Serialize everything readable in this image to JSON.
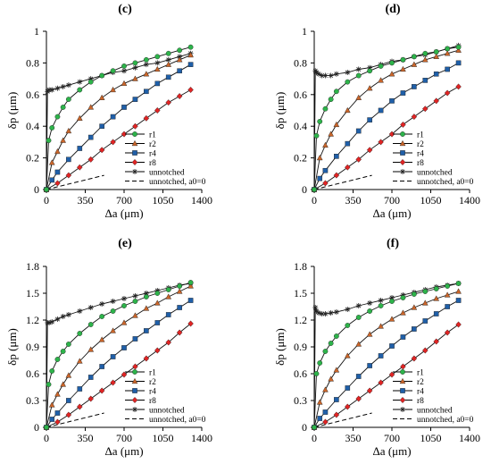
{
  "colors": {
    "r1": "#2db34a",
    "r2": "#c9652a",
    "r4": "#1f5fa8",
    "r8": "#e02424",
    "unnotched": "#222222",
    "unnotched_a0": "#000000"
  },
  "legend_order": [
    "r1",
    "r2",
    "r4",
    "r8",
    "unnotched",
    "unnotched, a0=0"
  ],
  "chart_data": [
    {
      "panel": "(c)",
      "type": "line",
      "xlabel": "Δa (μm)",
      "ylabel": "δp (μm)",
      "xlim": [
        0,
        1400
      ],
      "ylim": [
        0,
        1
      ],
      "x_ticks": [
        "0",
        "350",
        "700",
        "1050",
        "1400"
      ],
      "y_ticks": [
        "0",
        "0.2",
        "0.4",
        "0.6",
        "0.8",
        "1"
      ],
      "grid": false,
      "legend_position": "bottom-right",
      "series": [
        {
          "name": "r1",
          "marker": "circle",
          "x": [
            0,
            20,
            50,
            100,
            150,
            200,
            300,
            400,
            500,
            600,
            700,
            800,
            900,
            1000,
            1100,
            1200,
            1300
          ],
          "y": [
            0,
            0.31,
            0.39,
            0.46,
            0.52,
            0.57,
            0.63,
            0.68,
            0.72,
            0.75,
            0.78,
            0.8,
            0.82,
            0.84,
            0.86,
            0.88,
            0.9
          ]
        },
        {
          "name": "r2",
          "marker": "triangle",
          "x": [
            0,
            50,
            100,
            150,
            200,
            300,
            400,
            500,
            600,
            700,
            800,
            900,
            1000,
            1100,
            1200,
            1300
          ],
          "y": [
            0,
            0.17,
            0.24,
            0.31,
            0.37,
            0.45,
            0.52,
            0.58,
            0.63,
            0.67,
            0.7,
            0.73,
            0.76,
            0.79,
            0.82,
            0.85
          ]
        },
        {
          "name": "r4",
          "marker": "square",
          "x": [
            0,
            50,
            100,
            200,
            300,
            400,
            500,
            600,
            700,
            800,
            900,
            1000,
            1100,
            1200,
            1300
          ],
          "y": [
            0,
            0.06,
            0.11,
            0.19,
            0.26,
            0.33,
            0.4,
            0.46,
            0.52,
            0.57,
            0.62,
            0.67,
            0.71,
            0.75,
            0.79
          ]
        },
        {
          "name": "r8",
          "marker": "diamond",
          "x": [
            0,
            100,
            200,
            300,
            400,
            500,
            600,
            700,
            800,
            900,
            1000,
            1100,
            1200,
            1300
          ],
          "y": [
            0,
            0.04,
            0.09,
            0.14,
            0.19,
            0.25,
            0.3,
            0.35,
            0.4,
            0.45,
            0.5,
            0.55,
            0.59,
            0.63
          ]
        },
        {
          "name": "unnotched",
          "marker": "star",
          "x": [
            0,
            10,
            25,
            50,
            100,
            150,
            200,
            300,
            400,
            500,
            600,
            700,
            800,
            900,
            1000,
            1100,
            1200,
            1300
          ],
          "y": [
            0,
            0.62,
            0.63,
            0.63,
            0.64,
            0.65,
            0.66,
            0.68,
            0.7,
            0.72,
            0.74,
            0.75,
            0.77,
            0.79,
            0.8,
            0.82,
            0.84,
            0.86
          ]
        },
        {
          "name": "unnotched, a0=0",
          "marker": "none",
          "dashed": true,
          "x": [
            0,
            520
          ],
          "y": [
            0,
            0.09
          ]
        }
      ]
    },
    {
      "panel": "(d)",
      "type": "line",
      "xlabel": "Δa (μm)",
      "ylabel": "δp (μm)",
      "xlim": [
        0,
        1400
      ],
      "ylim": [
        0,
        1
      ],
      "x_ticks": [
        "0",
        "350",
        "700",
        "1050",
        "1400"
      ],
      "y_ticks": [
        "0",
        "0.2",
        "0.4",
        "0.6",
        "0.8",
        "1"
      ],
      "grid": false,
      "legend_position": "bottom-right",
      "series": [
        {
          "name": "r1",
          "marker": "circle",
          "x": [
            0,
            20,
            50,
            100,
            150,
            200,
            300,
            400,
            500,
            600,
            700,
            800,
            900,
            1000,
            1100,
            1200,
            1300
          ],
          "y": [
            0,
            0.34,
            0.43,
            0.51,
            0.57,
            0.62,
            0.68,
            0.72,
            0.75,
            0.78,
            0.8,
            0.82,
            0.84,
            0.86,
            0.87,
            0.89,
            0.9
          ]
        },
        {
          "name": "r2",
          "marker": "triangle",
          "x": [
            0,
            50,
            100,
            150,
            200,
            300,
            400,
            500,
            600,
            700,
            800,
            900,
            1000,
            1100,
            1200,
            1300
          ],
          "y": [
            0,
            0.2,
            0.28,
            0.35,
            0.41,
            0.5,
            0.58,
            0.64,
            0.69,
            0.73,
            0.76,
            0.79,
            0.82,
            0.84,
            0.86,
            0.88
          ]
        },
        {
          "name": "r4",
          "marker": "square",
          "x": [
            0,
            50,
            100,
            200,
            300,
            400,
            500,
            600,
            700,
            800,
            900,
            1000,
            1100,
            1200,
            1300
          ],
          "y": [
            0,
            0.07,
            0.12,
            0.21,
            0.29,
            0.37,
            0.44,
            0.5,
            0.56,
            0.61,
            0.65,
            0.69,
            0.73,
            0.76,
            0.8
          ]
        },
        {
          "name": "r8",
          "marker": "diamond",
          "x": [
            0,
            100,
            200,
            300,
            400,
            500,
            600,
            700,
            800,
            900,
            1000,
            1100,
            1200,
            1300
          ],
          "y": [
            0,
            0.04,
            0.09,
            0.14,
            0.19,
            0.25,
            0.3,
            0.35,
            0.41,
            0.46,
            0.51,
            0.56,
            0.61,
            0.65
          ]
        },
        {
          "name": "unnotched",
          "marker": "star",
          "x": [
            0,
            10,
            20,
            40,
            70,
            100,
            150,
            200,
            300,
            400,
            500,
            600,
            700,
            800,
            900,
            1000,
            1100,
            1200,
            1300
          ],
          "y": [
            0,
            0.75,
            0.74,
            0.73,
            0.72,
            0.72,
            0.72,
            0.73,
            0.74,
            0.76,
            0.77,
            0.79,
            0.81,
            0.82,
            0.84,
            0.85,
            0.87,
            0.89,
            0.91
          ]
        },
        {
          "name": "unnotched, a0=0",
          "marker": "none",
          "dashed": true,
          "x": [
            0,
            520
          ],
          "y": [
            0,
            0.09
          ]
        }
      ]
    },
    {
      "panel": "(e)",
      "type": "line",
      "xlabel": "Δa (μm)",
      "ylabel": "δp (μm)",
      "xlim": [
        0,
        1400
      ],
      "ylim": [
        0,
        1.8
      ],
      "x_ticks": [
        "0",
        "350",
        "700",
        "1050",
        "1400"
      ],
      "y_ticks": [
        "0",
        "0.3",
        "0.6",
        "0.9",
        "1.2",
        "1.5",
        "1.8"
      ],
      "grid": false,
      "legend_position": "bottom-right",
      "series": [
        {
          "name": "r1",
          "marker": "circle",
          "x": [
            0,
            20,
            50,
            100,
            150,
            200,
            300,
            400,
            500,
            600,
            700,
            800,
            900,
            1000,
            1100,
            1200,
            1300
          ],
          "y": [
            0,
            0.48,
            0.63,
            0.76,
            0.85,
            0.93,
            1.05,
            1.15,
            1.24,
            1.3,
            1.36,
            1.41,
            1.46,
            1.5,
            1.54,
            1.58,
            1.62
          ]
        },
        {
          "name": "r2",
          "marker": "triangle",
          "x": [
            0,
            50,
            100,
            150,
            200,
            300,
            400,
            500,
            600,
            700,
            800,
            900,
            1000,
            1100,
            1200,
            1300
          ],
          "y": [
            0,
            0.25,
            0.37,
            0.48,
            0.58,
            0.74,
            0.87,
            0.98,
            1.08,
            1.17,
            1.25,
            1.33,
            1.39,
            1.46,
            1.52,
            1.58
          ]
        },
        {
          "name": "r4",
          "marker": "square",
          "x": [
            0,
            50,
            100,
            200,
            300,
            400,
            500,
            600,
            700,
            800,
            900,
            1000,
            1100,
            1200,
            1300
          ],
          "y": [
            0,
            0.09,
            0.16,
            0.3,
            0.43,
            0.56,
            0.68,
            0.79,
            0.89,
            0.99,
            1.08,
            1.17,
            1.26,
            1.34,
            1.42
          ]
        },
        {
          "name": "r8",
          "marker": "diamond",
          "x": [
            0,
            100,
            200,
            300,
            400,
            500,
            600,
            700,
            800,
            900,
            1000,
            1100,
            1200,
            1300
          ],
          "y": [
            0,
            0.06,
            0.14,
            0.23,
            0.32,
            0.41,
            0.5,
            0.59,
            0.68,
            0.77,
            0.86,
            0.95,
            1.06,
            1.16
          ]
        },
        {
          "name": "unnotched",
          "marker": "star",
          "x": [
            0,
            10,
            25,
            50,
            100,
            150,
            200,
            300,
            400,
            500,
            600,
            700,
            800,
            900,
            1000,
            1100,
            1200,
            1300
          ],
          "y": [
            0,
            1.17,
            1.17,
            1.18,
            1.21,
            1.24,
            1.26,
            1.3,
            1.34,
            1.38,
            1.41,
            1.44,
            1.47,
            1.5,
            1.53,
            1.56,
            1.59,
            1.61
          ]
        },
        {
          "name": "unnotched, a0=0",
          "marker": "none",
          "dashed": true,
          "x": [
            0,
            520
          ],
          "y": [
            0,
            0.16
          ]
        }
      ]
    },
    {
      "panel": "(f)",
      "type": "line",
      "xlabel": "Δa (μm)",
      "ylabel": "δp (μm)",
      "xlim": [
        0,
        1400
      ],
      "ylim": [
        0,
        1.8
      ],
      "x_ticks": [
        "0",
        "350",
        "700",
        "1050",
        "1400"
      ],
      "y_ticks": [
        "0",
        "0.3",
        "0.6",
        "0.9",
        "1.2",
        "1.5",
        "1.8"
      ],
      "grid": false,
      "legend_position": "bottom-right",
      "series": [
        {
          "name": "r1",
          "marker": "circle",
          "x": [
            0,
            20,
            50,
            100,
            150,
            200,
            300,
            400,
            500,
            600,
            700,
            800,
            900,
            1000,
            1100,
            1200,
            1300
          ],
          "y": [
            0,
            0.6,
            0.72,
            0.85,
            0.94,
            1.02,
            1.14,
            1.23,
            1.3,
            1.36,
            1.41,
            1.45,
            1.49,
            1.52,
            1.55,
            1.58,
            1.61
          ]
        },
        {
          "name": "r2",
          "marker": "triangle",
          "x": [
            0,
            50,
            100,
            150,
            200,
            300,
            400,
            500,
            600,
            700,
            800,
            900,
            1000,
            1100,
            1200,
            1300
          ],
          "y": [
            0,
            0.28,
            0.42,
            0.54,
            0.64,
            0.8,
            0.93,
            1.04,
            1.13,
            1.21,
            1.28,
            1.34,
            1.39,
            1.44,
            1.48,
            1.52
          ]
        },
        {
          "name": "r4",
          "marker": "square",
          "x": [
            0,
            50,
            100,
            200,
            300,
            400,
            500,
            600,
            700,
            800,
            900,
            1000,
            1100,
            1200,
            1300
          ],
          "y": [
            0,
            0.1,
            0.17,
            0.31,
            0.44,
            0.57,
            0.69,
            0.8,
            0.91,
            1.01,
            1.1,
            1.19,
            1.27,
            1.35,
            1.42
          ]
        },
        {
          "name": "r8",
          "marker": "diamond",
          "x": [
            0,
            100,
            200,
            300,
            400,
            500,
            600,
            700,
            800,
            900,
            1000,
            1100,
            1200,
            1300
          ],
          "y": [
            0,
            0.06,
            0.14,
            0.23,
            0.32,
            0.41,
            0.5,
            0.59,
            0.68,
            0.77,
            0.86,
            0.96,
            1.06,
            1.15
          ]
        },
        {
          "name": "unnotched",
          "marker": "star",
          "x": [
            0,
            10,
            20,
            40,
            70,
            100,
            150,
            200,
            300,
            400,
            500,
            600,
            700,
            800,
            900,
            1000,
            1100,
            1200,
            1300
          ],
          "y": [
            0,
            1.34,
            1.3,
            1.28,
            1.27,
            1.27,
            1.28,
            1.29,
            1.32,
            1.36,
            1.39,
            1.42,
            1.45,
            1.48,
            1.51,
            1.54,
            1.57,
            1.59,
            1.61
          ]
        },
        {
          "name": "unnotched, a0=0",
          "marker": "none",
          "dashed": true,
          "x": [
            0,
            520
          ],
          "y": [
            0,
            0.16
          ]
        }
      ]
    }
  ]
}
